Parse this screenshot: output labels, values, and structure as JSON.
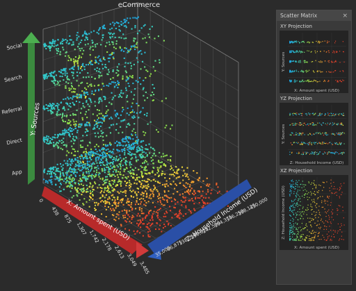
{
  "title": "eCommerce",
  "scatter_matrix": {
    "title": "Scatter Matrix",
    "close_label": "×",
    "projections": [
      {
        "title": "XY Projection",
        "xlabel": "X: Amount spent (USD)",
        "ylabel": "Y: Sources"
      },
      {
        "title": "YZ Projection",
        "xlabel": "Z: Household Income (USD)",
        "ylabel": "Y: Sources"
      },
      {
        "title": "XZ Projection",
        "xlabel": "X: Amount spent (USD)",
        "ylabel": "Z: Household Income (USD)"
      }
    ]
  },
  "chart_data": {
    "type": "scatter",
    "dimensions": "3d",
    "title": "eCommerce",
    "x_axis": {
      "label": "X: Amount spent (USD)",
      "ticks": [
        "0",
        "438",
        "875",
        "1,307",
        "1,742",
        "2,178",
        "2,613",
        "3,049",
        "3,485"
      ],
      "range": [
        0,
        3485
      ]
    },
    "y_axis": {
      "label": "Y: Sources",
      "categories": [
        "App",
        "Direct",
        "Referral",
        "Search",
        "Social"
      ]
    },
    "z_axis": {
      "label": "Z: Household Income (USD)",
      "ticks": [
        "35,000",
        "86,875",
        "138,750",
        "190,625",
        "242,500",
        "294,375",
        "346,250",
        "398,125",
        "450,000"
      ],
      "range": [
        35000,
        450000
      ]
    },
    "color_scale": [
      "#1fa3e0",
      "#37d0c2",
      "#8ee04a",
      "#f2d93b",
      "#f29a2e",
      "#e6412a"
    ],
    "series": [
      {
        "category": "Social",
        "x_range": [
          0,
          1300
        ],
        "points": 260
      },
      {
        "category": "Search",
        "x_range": [
          0,
          1300
        ],
        "points": 260
      },
      {
        "category": "Referral",
        "x_range": [
          0,
          1300
        ],
        "points": 260
      },
      {
        "category": "Direct",
        "x_range": [
          0,
          1400
        ],
        "points": 280
      },
      {
        "category": "App",
        "x_range": [
          0,
          3485
        ],
        "points": 900
      }
    ],
    "grid": true
  }
}
